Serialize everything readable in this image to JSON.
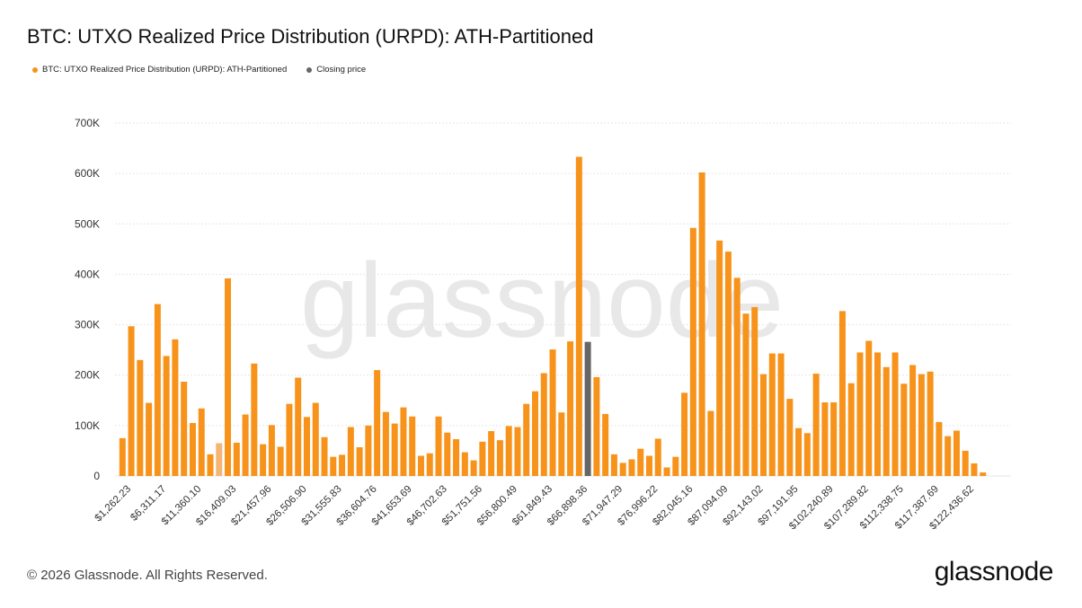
{
  "title": "BTC: UTXO Realized Price Distribution (URPD): ATH-Partitioned",
  "legend": [
    {
      "label": "BTC: UTXO Realized Price Distribution (URPD): ATH-Partitioned",
      "color": "#f7931a"
    },
    {
      "label": "Closing price",
      "color": "#666666"
    }
  ],
  "watermark": "glassnode",
  "footer": "© 2026 Glassnode. All Rights Reserved.",
  "brand": "glassnode",
  "chart_data": {
    "type": "bar",
    "ylim": [
      0,
      700000
    ],
    "yticks": [
      0,
      100000,
      200000,
      300000,
      400000,
      500000,
      600000,
      700000
    ],
    "ytick_labels": [
      "0",
      "100K",
      "200K",
      "300K",
      "400K",
      "500K",
      "600K",
      "700K"
    ],
    "xtick_labels": [
      "$1,262.23",
      "$6,311.17",
      "$11,360.10",
      "$16,409.03",
      "$21,457.96",
      "$26,506.90",
      "$31,555.83",
      "$36,604.76",
      "$41,653.69",
      "$46,702.63",
      "$51,751.56",
      "$56,800.49",
      "$61,849.43",
      "$66,898.36",
      "$71,947.29",
      "$76,996.22",
      "$82,045.16",
      "$87,094.09",
      "$92,143.02",
      "$97,191.95",
      "$102,240.89",
      "$107,289.82",
      "$112,338.75",
      "$117,387.69",
      "$122,436.62"
    ],
    "grid": true,
    "legend_position": "top-left",
    "closing_price_index": 53,
    "light_bar_index": 11,
    "colors": {
      "bar": "#f7931a",
      "bar_light": "#f5b574",
      "closing": "#666666",
      "grid": "#e6e6e6"
    },
    "values": [
      75000,
      297000,
      230000,
      145000,
      341000,
      238000,
      271000,
      187000,
      105000,
      134000,
      43000,
      65000,
      392000,
      66000,
      122000,
      223000,
      63000,
      101000,
      58000,
      143000,
      195000,
      117000,
      145000,
      77000,
      38000,
      42000,
      97000,
      57000,
      100000,
      210000,
      127000,
      104000,
      136000,
      118000,
      40000,
      45000,
      118000,
      86000,
      73000,
      47000,
      31000,
      68000,
      89000,
      71000,
      99000,
      97000,
      143000,
      168000,
      204000,
      251000,
      126000,
      267000,
      633000,
      266000,
      196000,
      123000,
      43000,
      26000,
      33000,
      54000,
      40000,
      74000,
      17000,
      38000,
      165000,
      492000,
      602000,
      129000,
      467000,
      445000,
      393000,
      322000,
      335000,
      202000,
      243000,
      243000,
      153000,
      95000,
      85000,
      203000,
      146000,
      146000,
      327000,
      184000,
      245000,
      268000,
      245000,
      216000,
      245000,
      183000,
      220000,
      202000,
      207000,
      107000,
      79000,
      90000,
      50000,
      25000,
      7000
    ]
  }
}
